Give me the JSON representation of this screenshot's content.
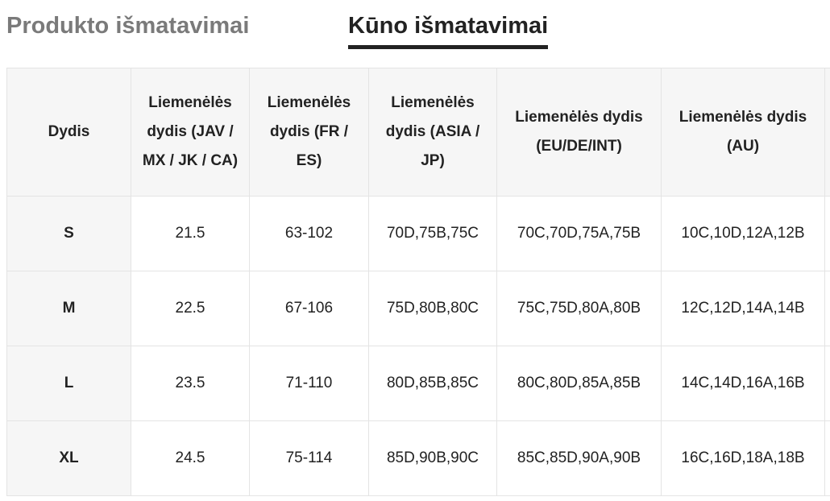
{
  "tabs": [
    {
      "label": "Produkto išmatavimai",
      "active": false
    },
    {
      "label": "Kūno išmatavimai",
      "active": true
    }
  ],
  "table": {
    "headers": [
      "Dydis",
      "Liemenėlės dydis (JAV / MX / JK / CA)",
      "Liemenėlės dydis (FR / ES)",
      "Liemenėlės dydis (ASIA / JP)",
      "Liemenėlės dydis (EU/DE/INT)",
      "Liemenėlės dydis (AU)",
      ""
    ],
    "rows": [
      [
        "S",
        "21.5",
        "63-102",
        "70D,75B,75C",
        "70C,70D,75A,75B",
        "10C,10D,12A,12B",
        ""
      ],
      [
        "M",
        "22.5",
        "67-106",
        "75D,80B,80C",
        "75C,75D,80A,80B",
        "12C,12D,14A,14B",
        ""
      ],
      [
        "L",
        "23.5",
        "71-110",
        "80D,85B,85C",
        "80C,80D,85A,85B",
        "14C,14D,16A,16B",
        ""
      ],
      [
        "XL",
        "24.5",
        "75-114",
        "85D,90B,90C",
        "85C,85D,90A,90B",
        "16C,16D,18A,18B",
        ""
      ]
    ]
  }
}
